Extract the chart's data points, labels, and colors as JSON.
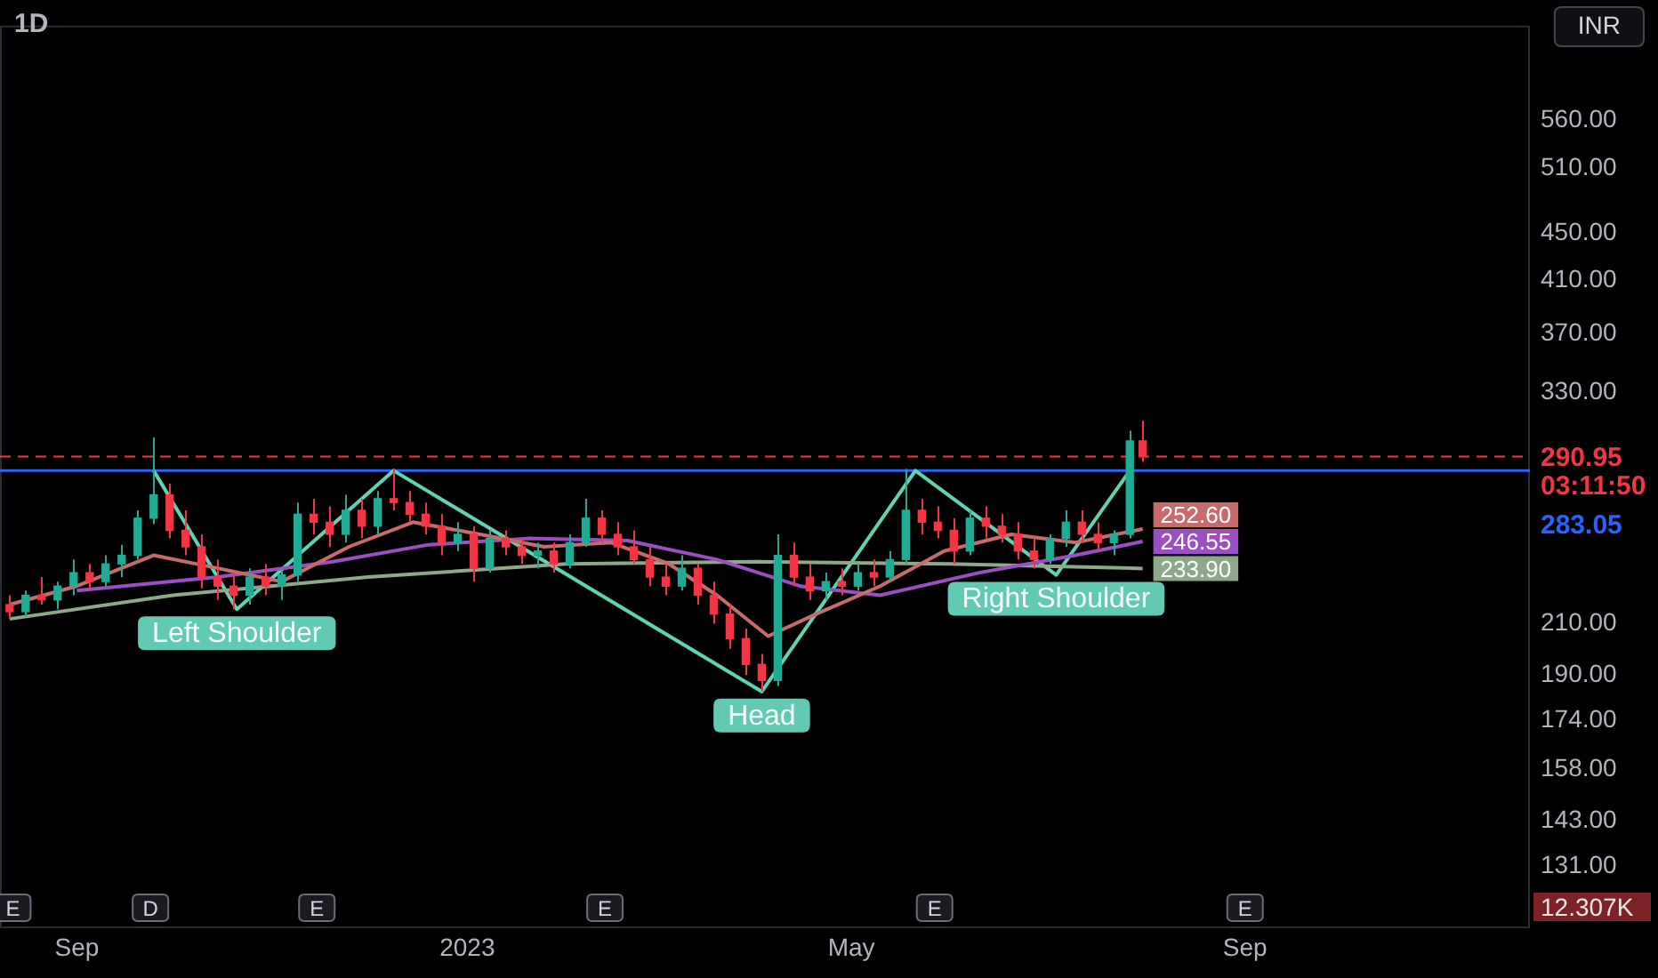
{
  "chart_data": {
    "type": "candlestick",
    "title": "1D",
    "x": [
      "2022-08-11",
      "2022-08-16",
      "2022-08-21",
      "2022-08-26",
      "2022-08-31",
      "2022-09-05",
      "2022-09-10",
      "2022-09-15",
      "2022-09-20",
      "2022-09-25",
      "2022-09-30",
      "2022-10-05",
      "2022-10-10",
      "2022-10-15",
      "2022-10-20",
      "2022-10-25",
      "2022-10-30",
      "2022-11-04",
      "2022-11-09",
      "2022-11-14",
      "2022-11-19",
      "2022-11-24",
      "2022-11-29",
      "2022-12-04",
      "2022-12-09",
      "2022-12-14",
      "2022-12-19",
      "2022-12-24",
      "2022-12-29",
      "2023-01-03",
      "2023-01-08",
      "2023-01-13",
      "2023-01-18",
      "2023-01-23",
      "2023-01-28",
      "2023-02-02",
      "2023-02-07",
      "2023-02-12",
      "2023-02-17",
      "2023-02-22",
      "2023-02-27",
      "2023-03-04",
      "2023-03-09",
      "2023-03-14",
      "2023-03-19",
      "2023-03-24",
      "2023-03-29",
      "2023-04-03",
      "2023-04-08",
      "2023-04-13",
      "2023-04-18",
      "2023-04-23",
      "2023-04-28",
      "2023-05-03",
      "2023-05-08",
      "2023-05-13",
      "2023-05-18",
      "2023-05-23",
      "2023-05-28",
      "2023-06-02",
      "2023-06-07",
      "2023-06-12",
      "2023-06-17",
      "2023-06-22",
      "2023-06-27",
      "2023-07-02",
      "2023-07-07",
      "2023-07-12",
      "2023-07-17",
      "2023-07-22",
      "2023-07-27",
      "2023-07-31"
    ],
    "ohlc": [
      [
        218,
        222,
        212,
        215
      ],
      [
        215,
        224,
        213,
        222
      ],
      [
        222,
        230,
        218,
        220
      ],
      [
        220,
        228,
        216,
        226
      ],
      [
        226,
        238,
        222,
        232
      ],
      [
        232,
        236,
        224,
        228
      ],
      [
        228,
        240,
        226,
        236
      ],
      [
        236,
        245,
        230,
        240
      ],
      [
        240,
        262,
        238,
        258
      ],
      [
        258,
        302,
        255,
        270
      ],
      [
        270,
        276,
        248,
        252
      ],
      [
        252,
        262,
        240,
        244
      ],
      [
        244,
        250,
        225,
        230
      ],
      [
        230,
        238,
        220,
        226
      ],
      [
        226,
        232,
        216,
        222
      ],
      [
        222,
        234,
        218,
        230
      ],
      [
        230,
        236,
        222,
        226
      ],
      [
        226,
        234,
        220,
        231
      ],
      [
        231,
        266,
        228,
        260
      ],
      [
        260,
        268,
        250,
        256
      ],
      [
        256,
        264,
        244,
        250
      ],
      [
        250,
        270,
        246,
        262
      ],
      [
        262,
        268,
        248,
        254
      ],
      [
        254,
        272,
        250,
        268
      ],
      [
        268,
        284,
        262,
        266
      ],
      [
        266,
        272,
        256,
        260
      ],
      [
        260,
        266,
        250,
        254
      ],
      [
        254,
        260,
        240,
        246
      ],
      [
        246,
        256,
        242,
        250
      ],
      [
        250,
        254,
        228,
        234
      ],
      [
        234,
        252,
        232,
        248
      ],
      [
        248,
        252,
        240,
        244
      ],
      [
        244,
        248,
        236,
        240
      ],
      [
        240,
        246,
        234,
        242
      ],
      [
        242,
        246,
        232,
        236
      ],
      [
        236,
        250,
        234,
        246
      ],
      [
        246,
        268,
        244,
        258
      ],
      [
        258,
        262,
        246,
        250
      ],
      [
        250,
        256,
        240,
        244
      ],
      [
        244,
        252,
        236,
        238
      ],
      [
        238,
        244,
        226,
        230
      ],
      [
        230,
        236,
        222,
        226
      ],
      [
        226,
        240,
        224,
        234
      ],
      [
        234,
        236,
        218,
        222
      ],
      [
        222,
        228,
        210,
        214
      ],
      [
        214,
        218,
        200,
        204
      ],
      [
        204,
        208,
        190,
        194
      ],
      [
        194,
        198,
        184,
        188
      ],
      [
        188,
        250,
        186,
        240
      ],
      [
        240,
        246,
        226,
        230
      ],
      [
        230,
        236,
        220,
        224
      ],
      [
        224,
        232,
        220,
        228
      ],
      [
        228,
        234,
        222,
        226
      ],
      [
        226,
        236,
        224,
        232
      ],
      [
        232,
        238,
        226,
        230
      ],
      [
        230,
        242,
        228,
        238
      ],
      [
        238,
        284,
        236,
        262
      ],
      [
        262,
        268,
        250,
        256
      ],
      [
        256,
        264,
        248,
        252
      ],
      [
        252,
        258,
        236,
        242
      ],
      [
        242,
        262,
        240,
        258
      ],
      [
        258,
        264,
        248,
        254
      ],
      [
        254,
        260,
        246,
        250
      ],
      [
        250,
        256,
        238,
        242
      ],
      [
        242,
        248,
        234,
        238
      ],
      [
        238,
        250,
        236,
        248
      ],
      [
        248,
        262,
        244,
        256
      ],
      [
        256,
        262,
        246,
        250
      ],
      [
        250,
        256,
        242,
        246
      ],
      [
        246,
        252,
        240,
        250
      ],
      [
        250,
        306,
        248,
        300
      ],
      [
        300,
        312,
        288,
        290.95
      ]
    ],
    "colors": [
      "#f23645",
      "#22ab94",
      "#f23645",
      "#22ab94",
      "#22ab94",
      "#f23645",
      "#22ab94",
      "#22ab94",
      "#22ab94",
      "#22ab94",
      "#f23645",
      "#f23645",
      "#f23645",
      "#f23645",
      "#f23645",
      "#22ab94",
      "#f23645",
      "#22ab94",
      "#22ab94",
      "#f23645",
      "#f23645",
      "#22ab94",
      "#f23645",
      "#22ab94",
      "#f23645",
      "#f23645",
      "#f23645",
      "#f23645",
      "#22ab94",
      "#f23645",
      "#22ab94",
      "#f23645",
      "#f23645",
      "#22ab94",
      "#f23645",
      "#22ab94",
      "#22ab94",
      "#f23645",
      "#f23645",
      "#f23645",
      "#f23645",
      "#f23645",
      "#22ab94",
      "#f23645",
      "#f23645",
      "#f23645",
      "#f23645",
      "#f23645",
      "#22ab94",
      "#f23645",
      "#f23645",
      "#22ab94",
      "#f23645",
      "#22ab94",
      "#f23645",
      "#22ab94",
      "#22ab94",
      "#f23645",
      "#f23645",
      "#f23645",
      "#22ab94",
      "#f23645",
      "#f23645",
      "#f23645",
      "#f23645",
      "#22ab94",
      "#22ab94",
      "#f23645",
      "#f23645",
      "#22ab94",
      "#22ab94",
      "#f23645"
    ],
    "series": [
      {
        "type": "line",
        "color": "#c96a6c",
        "x": [
          "2022-08-11",
          "2022-09-01",
          "2022-09-25",
          "2022-10-15",
          "2022-11-04",
          "2022-11-25",
          "2022-12-15",
          "2023-01-05",
          "2023-01-25",
          "2023-02-15",
          "2023-03-05",
          "2023-03-20",
          "2023-04-05",
          "2023-04-20",
          "2023-05-10",
          "2023-05-30",
          "2023-06-20",
          "2023-07-10",
          "2023-07-31"
        ],
        "values": [
          218,
          226,
          240,
          234,
          228,
          244,
          256,
          250,
          244,
          246,
          236,
          222,
          205,
          214,
          226,
          242,
          250,
          246,
          252.6
        ],
        "value_labels": [
          null,
          null,
          null,
          null,
          null,
          null,
          null,
          null,
          null,
          null,
          null,
          null,
          null,
          null,
          null,
          null,
          null,
          null,
          "252.60"
        ]
      },
      {
        "type": "line",
        "color": "#9c4fc2",
        "x": [
          "2022-09-01",
          "2022-10-15",
          "2022-11-20",
          "2022-12-20",
          "2023-01-20",
          "2023-02-20",
          "2023-03-20",
          "2023-04-15",
          "2023-05-10",
          "2023-06-10",
          "2023-07-10",
          "2023-07-31"
        ],
        "values": [
          224,
          230,
          237,
          245,
          248,
          247,
          238,
          226,
          222,
          232,
          240,
          246.55
        ],
        "value_labels": [
          null,
          null,
          null,
          null,
          null,
          null,
          null,
          null,
          null,
          null,
          null,
          "246.55"
        ]
      },
      {
        "type": "line",
        "color": "#8fa889",
        "x": [
          "2022-08-11",
          "2022-10-01",
          "2022-12-01",
          "2023-02-01",
          "2023-04-01",
          "2023-06-01",
          "2023-07-31"
        ],
        "values": [
          212,
          222,
          230,
          236,
          237,
          236,
          233.9
        ],
        "value_labels": [
          null,
          null,
          null,
          null,
          null,
          null,
          "233.90"
        ]
      },
      {
        "type": "line",
        "color": "#5fd3b5",
        "x": [
          "2022-09-25",
          "2022-10-21",
          "2022-12-09",
          "2023-04-03",
          "2023-05-21",
          "2023-07-04",
          "2023-07-27"
        ],
        "values": [
          283.05,
          216,
          283.05,
          184,
          283.05,
          231,
          283.05
        ]
      }
    ],
    "ref_lines": [
      {
        "axis": "y",
        "value": 283.05,
        "label": "283.05",
        "color": "#2962ff"
      },
      {
        "axis": "y",
        "value": 290.95,
        "label": "290.95",
        "color": "#f23645",
        "line_style": "dashed"
      }
    ],
    "annotations": [
      "INR",
      "12.307K",
      "03:11:50",
      {
        "text": "Left Shoulder",
        "x": "2022-10-21",
        "y": 216
      },
      {
        "text": "Head",
        "x": "2023-04-03",
        "y": 184
      },
      {
        "text": "Right Shoulder",
        "x": "2023-07-04",
        "y": 231
      },
      {
        "text": "E",
        "x": "2022-08-12"
      },
      {
        "text": "D",
        "x": "2022-09-24"
      },
      {
        "text": "E",
        "x": "2022-11-15"
      },
      {
        "text": "E",
        "x": "2023-02-13"
      },
      {
        "text": "E",
        "x": "2023-05-27"
      },
      {
        "text": "E",
        "x": "2023-09-01"
      }
    ],
    "xlim": [
      "2022-08-08",
      "2023-11-29"
    ],
    "xticks": [
      {
        "value": "2022-09-01",
        "label": "Sep"
      },
      {
        "value": "2023-01-01",
        "label": "2023"
      },
      {
        "value": "2023-05-01",
        "label": "May"
      },
      {
        "value": "2023-09-01",
        "label": "Sep"
      }
    ],
    "log": "y",
    "ylim": [
      116,
      674
    ],
    "yticks": [
      {
        "value": 131,
        "label": "131.00"
      },
      {
        "value": 143,
        "label": "143.00"
      },
      {
        "value": 158,
        "label": "158.00"
      },
      {
        "value": 174,
        "label": "174.00"
      },
      {
        "value": 190,
        "label": "190.00"
      },
      {
        "value": 210,
        "label": "210.00"
      },
      {
        "value": 330,
        "label": "330.00"
      },
      {
        "value": 370,
        "label": "370.00"
      },
      {
        "value": 410,
        "label": "410.00"
      },
      {
        "value": 450,
        "label": "450.00"
      },
      {
        "value": 510,
        "label": "510.00"
      },
      {
        "value": 560,
        "label": "560.00"
      }
    ],
    "grid": false,
    "legend": false,
    "marker": "none"
  }
}
